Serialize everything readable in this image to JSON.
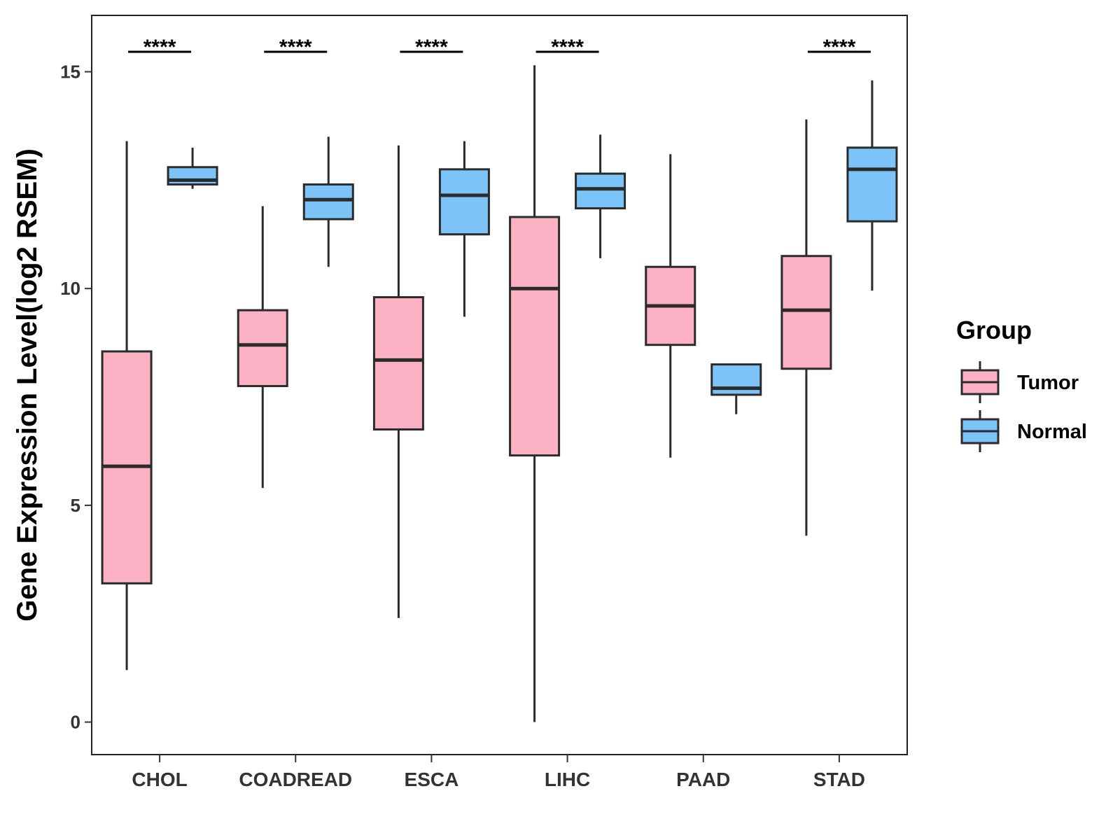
{
  "chart_data": {
    "type": "box",
    "title": "",
    "xlabel": "",
    "ylabel": "Gene Expression Level(log2 RSEM)",
    "ylim": [
      -0.75,
      16.3
    ],
    "yticks": [
      0,
      5,
      10,
      15
    ],
    "ytick_labels": [
      "0",
      "5",
      "10",
      "15"
    ],
    "categories": [
      "CHOL",
      "COADREAD",
      "ESCA",
      "LIHC",
      "PAAD",
      "STAD"
    ],
    "legend": {
      "title": "Group",
      "position": "right",
      "entries": [
        "Tumor",
        "Normal"
      ]
    },
    "colors": {
      "Tumor": "#FBB1C3",
      "Normal": "#7CC3F7",
      "outline": "#2b2b2b"
    },
    "series": [
      {
        "name": "Tumor",
        "boxes": [
          {
            "category": "CHOL",
            "whisker_low": 1.2,
            "q1": 3.2,
            "median": 5.9,
            "q3": 8.55,
            "whisker_high": 13.4
          },
          {
            "category": "COADREAD",
            "whisker_low": 5.4,
            "q1": 7.75,
            "median": 8.7,
            "q3": 9.5,
            "whisker_high": 11.9
          },
          {
            "category": "ESCA",
            "whisker_low": 2.4,
            "q1": 6.75,
            "median": 8.35,
            "q3": 9.8,
            "whisker_high": 13.3
          },
          {
            "category": "LIHC",
            "whisker_low": 0.0,
            "q1": 6.15,
            "median": 10.0,
            "q3": 11.65,
            "whisker_high": 15.15
          },
          {
            "category": "PAAD",
            "whisker_low": 6.1,
            "q1": 8.7,
            "median": 9.6,
            "q3": 10.5,
            "whisker_high": 13.1
          },
          {
            "category": "STAD",
            "whisker_low": 4.3,
            "q1": 8.15,
            "median": 9.5,
            "q3": 10.75,
            "whisker_high": 13.9
          }
        ]
      },
      {
        "name": "Normal",
        "boxes": [
          {
            "category": "CHOL",
            "whisker_low": 12.3,
            "q1": 12.4,
            "median": 12.5,
            "q3": 12.8,
            "whisker_high": 13.25
          },
          {
            "category": "COADREAD",
            "whisker_low": 10.5,
            "q1": 11.6,
            "median": 12.05,
            "q3": 12.4,
            "whisker_high": 13.5
          },
          {
            "category": "ESCA",
            "whisker_low": 9.35,
            "q1": 11.25,
            "median": 12.15,
            "q3": 12.75,
            "whisker_high": 13.4
          },
          {
            "category": "LIHC",
            "whisker_low": 10.7,
            "q1": 11.85,
            "median": 12.3,
            "q3": 12.65,
            "whisker_high": 13.55
          },
          {
            "category": "PAAD",
            "whisker_low": 7.1,
            "q1": 7.55,
            "median": 7.7,
            "q3": 8.25,
            "whisker_high": 8.25
          },
          {
            "category": "STAD",
            "whisker_low": 9.95,
            "q1": 11.55,
            "median": 12.75,
            "q3": 13.25,
            "whisker_high": 14.8
          }
        ]
      }
    ],
    "annotations": [
      {
        "category": "CHOL",
        "text": "****"
      },
      {
        "category": "COADREAD",
        "text": "****"
      },
      {
        "category": "ESCA",
        "text": "****"
      },
      {
        "category": "LIHC",
        "text": "****"
      },
      {
        "category": "STAD",
        "text": "****"
      }
    ]
  }
}
